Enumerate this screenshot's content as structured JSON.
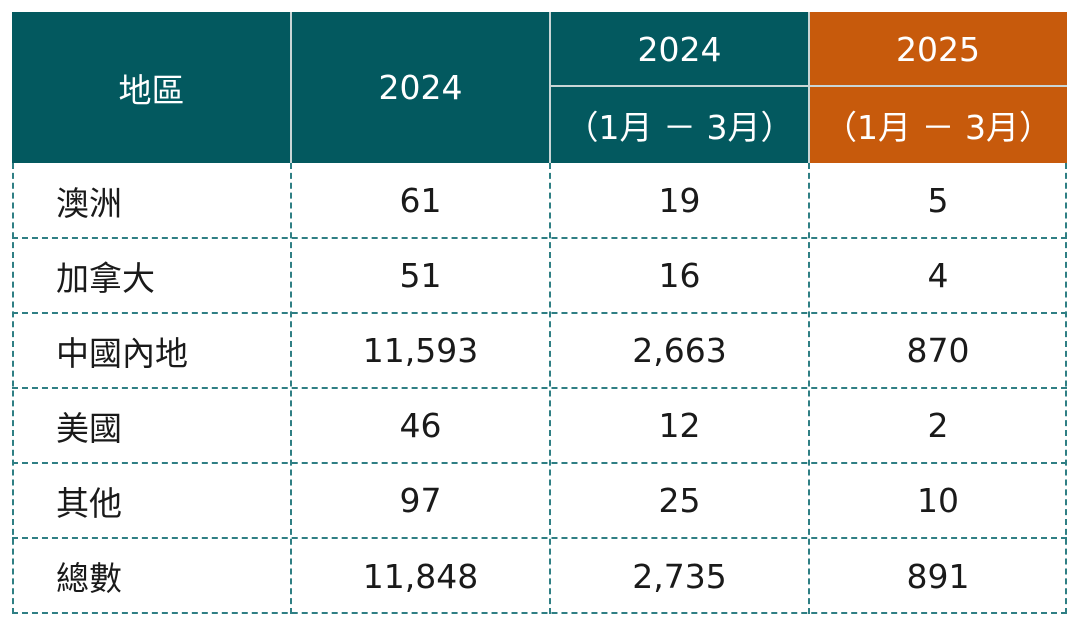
{
  "colors": {
    "header_teal": "#03595f",
    "header_orange": "#c75a0c",
    "grid": "#2f7f84"
  },
  "header": {
    "region": "地區",
    "col_2024": "2024",
    "col_2024q1_year": "2024",
    "col_2024q1_period": "（1月 － 3月）",
    "col_2025q1_year": "2025",
    "col_2025q1_period": "（1月 － 3月）"
  },
  "rows": [
    {
      "region": "澳洲",
      "y2024": "61",
      "y2024q1": "19",
      "y2025q1": "5"
    },
    {
      "region": "加拿大",
      "y2024": "51",
      "y2024q1": "16",
      "y2025q1": "4"
    },
    {
      "region": "中國內地",
      "y2024": "11,593",
      "y2024q1": "2,663",
      "y2025q1": "870"
    },
    {
      "region": "美國",
      "y2024": "46",
      "y2024q1": "12",
      "y2025q1": "2"
    },
    {
      "region": "其他",
      "y2024": "97",
      "y2024q1": "25",
      "y2025q1": "10"
    },
    {
      "region": "總數",
      "y2024": "11,848",
      "y2024q1": "2,735",
      "y2025q1": "891"
    }
  ]
}
